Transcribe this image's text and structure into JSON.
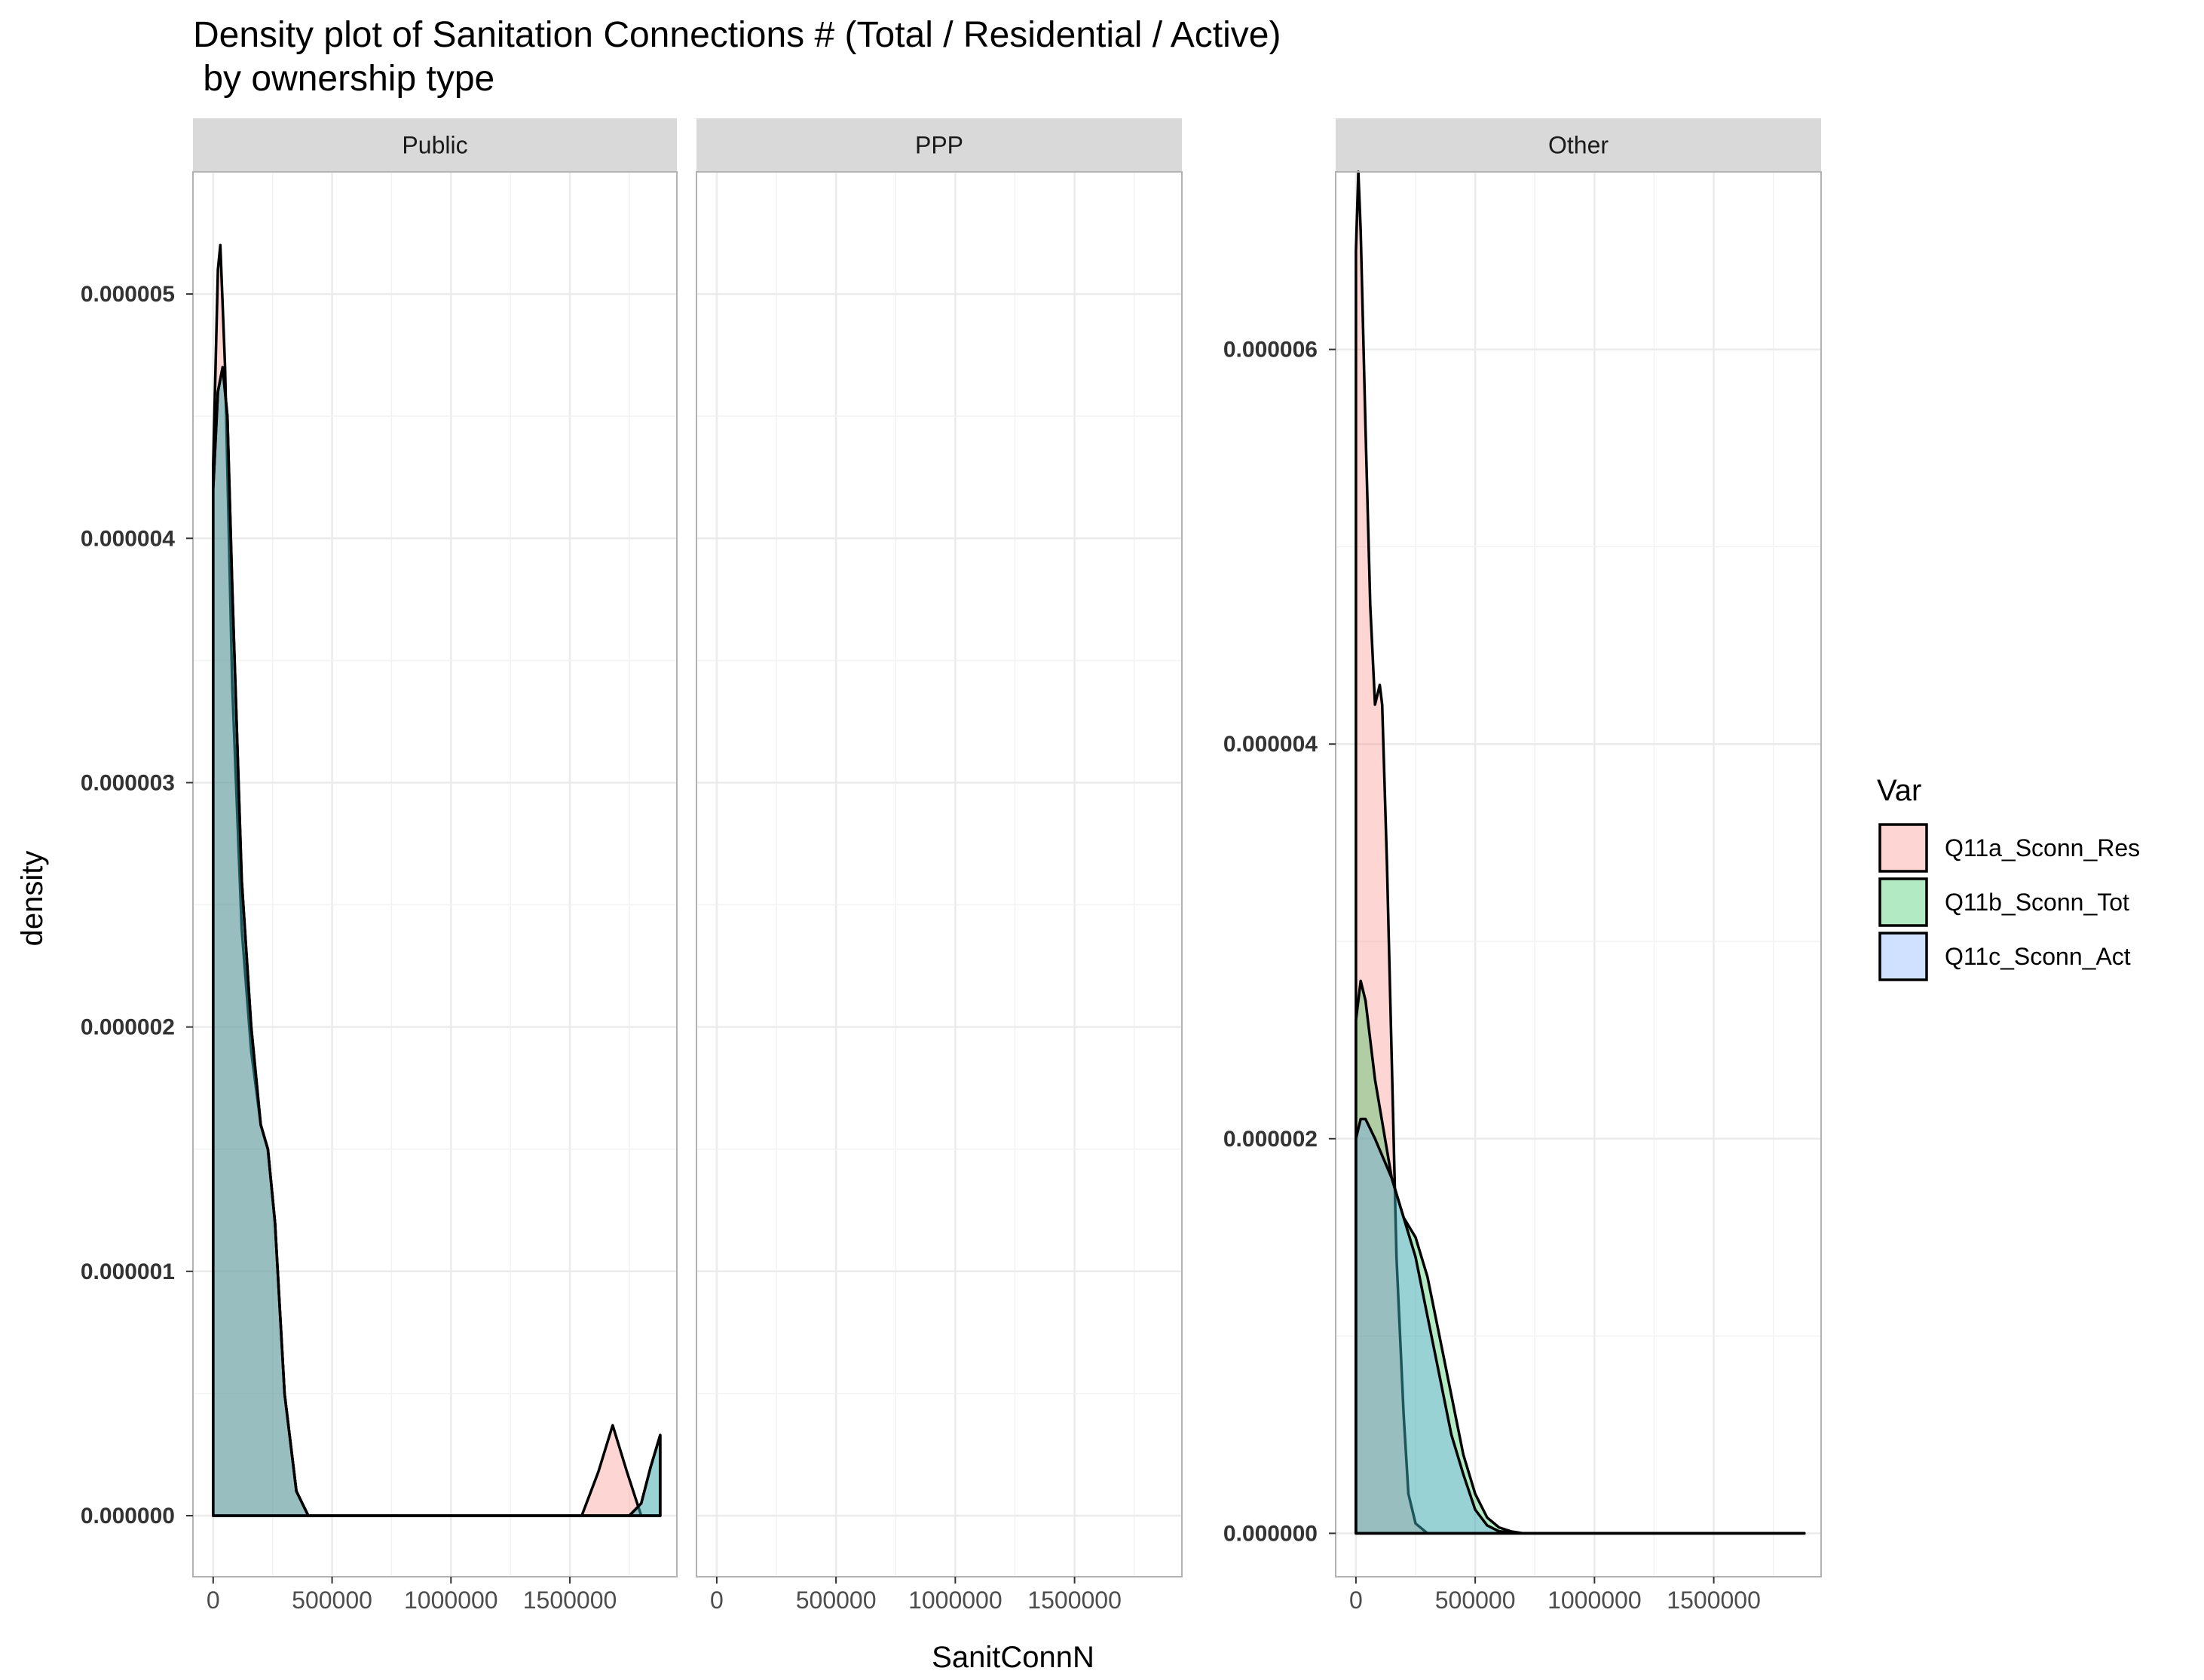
{
  "chart_data": {
    "type": "area",
    "subtype": "density",
    "title_line1": "Density plot of Sanitation Connections # (Total / Residential / Active)",
    "title_line2": " by ownership type",
    "xlabel": "SanitConnN",
    "ylabel": "density",
    "x_ticks": [
      0,
      500000,
      1000000,
      1500000
    ],
    "xlim": [
      -85000,
      1950000
    ],
    "grid": true,
    "legend": {
      "title": "Var",
      "placement": "right",
      "entries": [
        {
          "name": "Q11a_Sconn_Res",
          "color": "#f8766d"
        },
        {
          "name": "Q11b_Sconn_Tot",
          "color": "#00ba38"
        },
        {
          "name": "Q11c_Sconn_Act",
          "color": "#619cff"
        }
      ]
    },
    "panels": [
      {
        "label": "Public",
        "ylim": [
          -2.5e-07,
          5.5e-06
        ],
        "y_ticks": [
          "0.000000",
          "0.000001",
          "0.000002",
          "0.000003",
          "0.000004",
          "0.000005"
        ],
        "y_tick_values": [
          0,
          1e-06,
          2e-06,
          3e-06,
          4e-06,
          5e-06
        ],
        "series": [
          {
            "name": "Q11a_Sconn_Res",
            "x": [
              0,
              20000,
              30000,
              50000,
              80000,
              120000,
              160000,
              200000,
              230000,
              260000,
              300000,
              350000,
              400000,
              600000,
              1000000,
              1550000,
              1620000,
              1680000,
              1740000,
              1800000,
              1880000
            ],
            "y": [
              4.3e-06,
              5.1e-06,
              5.2e-06,
              4.7e-06,
              3.4e-06,
              2.4e-06,
              1.9e-06,
              1.6e-06,
              1.5e-06,
              1.2e-06,
              5e-07,
              1e-07,
              0.0,
              0.0,
              0.0,
              0.0,
              1.8e-07,
              3.7e-07,
              1.8e-07,
              0.0,
              0.0
            ]
          },
          {
            "name": "Q11b_Sconn_Tot",
            "x": [
              0,
              20000,
              40000,
              60000,
              80000,
              120000,
              160000,
              200000,
              230000,
              260000,
              300000,
              350000,
              400000,
              600000,
              1000000,
              1500000,
              1750000,
              1800000,
              1840000,
              1880000
            ],
            "y": [
              4.2e-06,
              4.6e-06,
              4.7e-06,
              4.5e-06,
              3.8e-06,
              2.6e-06,
              2e-06,
              1.6e-06,
              1.5e-06,
              1.2e-06,
              5e-07,
              1e-07,
              0.0,
              0.0,
              0.0,
              0.0,
              0.0,
              5e-08,
              2e-07,
              3.3e-07
            ]
          },
          {
            "name": "Q11c_Sconn_Act",
            "x": [
              0,
              20000,
              40000,
              60000,
              80000,
              120000,
              160000,
              200000,
              230000,
              260000,
              300000,
              350000,
              400000,
              600000,
              1000000,
              1500000,
              1750000,
              1800000,
              1840000,
              1880000
            ],
            "y": [
              4.2e-06,
              4.6e-06,
              4.7e-06,
              4.5e-06,
              3.8e-06,
              2.6e-06,
              2e-06,
              1.6e-06,
              1.5e-06,
              1.2e-06,
              5e-07,
              1e-07,
              0.0,
              0.0,
              0.0,
              0.0,
              0.0,
              5e-08,
              2e-07,
              3.3e-07
            ]
          }
        ]
      },
      {
        "label": "PPP",
        "ylim": [
          -2.5e-07,
          5.5e-06
        ],
        "y_ticks": [],
        "y_tick_values": [],
        "series": []
      },
      {
        "label": "Other",
        "ylim": [
          -2.2e-07,
          6.9e-06
        ],
        "y_ticks": [
          "0.000000",
          "0.000002",
          "0.000004",
          "0.000006"
        ],
        "y_tick_values": [
          0,
          2e-06,
          4e-06,
          6e-06
        ],
        "series": [
          {
            "name": "Q11a_Sconn_Res",
            "x": [
              0,
              10000,
              20000,
              40000,
              60000,
              80000,
              100000,
              110000,
              130000,
              150000,
              170000,
              200000,
              220000,
              250000,
              300000,
              400000,
              1000000,
              1880000
            ],
            "y": [
              6.5e-06,
              6.9e-06,
              6.6e-06,
              5.6e-06,
              4.7e-06,
              4.2e-06,
              4.3e-06,
              4.2e-06,
              3.4e-06,
              2.4e-06,
              1.4e-06,
              6e-07,
              2e-07,
              5e-08,
              0.0,
              0.0,
              0.0,
              0.0
            ]
          },
          {
            "name": "Q11b_Sconn_Tot",
            "x": [
              0,
              20000,
              40000,
              80000,
              150000,
              200000,
              250000,
              300000,
              350000,
              400000,
              450000,
              500000,
              550000,
              600000,
              650000,
              700000,
              800000,
              1000000,
              1880000
            ],
            "y": [
              2.6e-06,
              2.8e-06,
              2.7e-06,
              2.3e-06,
              1.8e-06,
              1.6e-06,
              1.5e-06,
              1.3e-06,
              1e-06,
              7e-07,
              4e-07,
              2e-07,
              8e-08,
              3e-08,
              1e-08,
              0.0,
              0.0,
              0.0,
              0.0
            ]
          },
          {
            "name": "Q11c_Sconn_Act",
            "x": [
              0,
              20000,
              40000,
              80000,
              150000,
              200000,
              250000,
              300000,
              350000,
              400000,
              450000,
              500000,
              550000,
              600000,
              700000,
              1000000,
              1880000
            ],
            "y": [
              2e-06,
              2.1e-06,
              2.1e-06,
              2e-06,
              1.8e-06,
              1.6e-06,
              1.4e-06,
              1.1e-06,
              8e-07,
              5e-07,
              3e-07,
              1.2e-07,
              4e-08,
              1e-08,
              0.0,
              0.0,
              0.0
            ]
          }
        ]
      }
    ]
  }
}
